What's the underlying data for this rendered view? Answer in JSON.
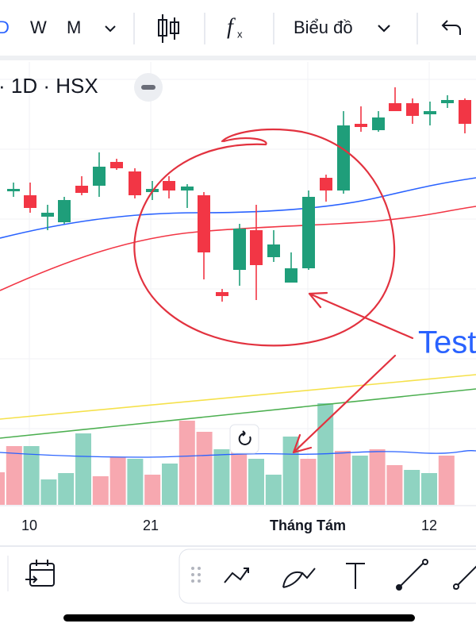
{
  "toolbar": {
    "intervals": [
      "D",
      "W",
      "M"
    ],
    "chart_menu": "Biểu đồ"
  },
  "symbol": "· 1D · HSX",
  "annotation": "Test",
  "x_labels": [
    "10",
    "21",
    "Tháng Tám",
    "12"
  ]
}
